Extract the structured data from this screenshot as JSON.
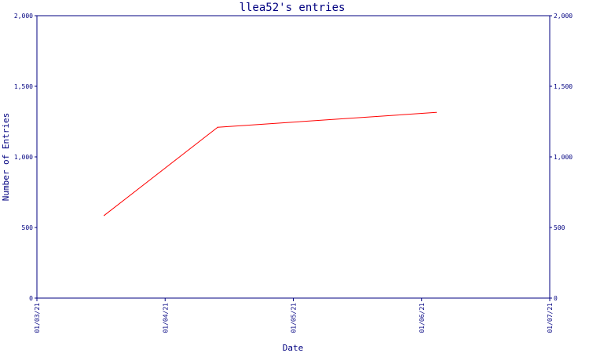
{
  "chart_data": {
    "type": "line",
    "title": "llea52's entries",
    "xlabel": "Date",
    "ylabel": "Number of Entries",
    "x_ticks": [
      "01/03/21",
      "01/04/21",
      "01/05/21",
      "01/06/21",
      "01/07/21"
    ],
    "y_ticks": [
      "0",
      "500",
      "1,000",
      "1,500",
      "2,000"
    ],
    "ylim": [
      0,
      2000
    ],
    "xlim": [
      "2021-03-01",
      "2021-07-01"
    ],
    "grid": false,
    "series": [
      {
        "name": "",
        "color": "#ff0000",
        "points": [
          {
            "x": "2021-03-17",
            "y": 585
          },
          {
            "x": "2021-04-13",
            "y": 1210
          },
          {
            "x": "2021-06-04",
            "y": 1315
          }
        ]
      }
    ]
  },
  "colors": {
    "axis": "#000080",
    "line": "#ff0000"
  }
}
